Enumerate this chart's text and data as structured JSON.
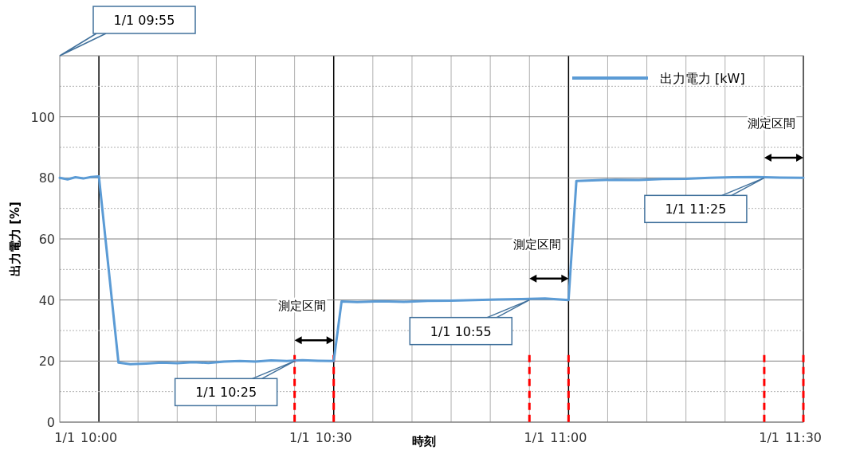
{
  "chart_data": {
    "type": "line",
    "xlabel": "時刻",
    "ylabel": "出力電力 [%]",
    "xlim": [
      9.9167,
      11.5
    ],
    "ylim": [
      0,
      120
    ],
    "xticks": [
      {
        "value": 10,
        "label": "10:00"
      },
      {
        "value": 10.0833,
        "label": null
      },
      {
        "value": 10.1667,
        "label": null
      },
      {
        "value": 10.25,
        "label": null
      },
      {
        "value": 10.3333,
        "label": null
      },
      {
        "value": 10.4167,
        "label": null
      },
      {
        "value": 10.5,
        "label": "10:30"
      },
      {
        "value": 10.5833,
        "label": null
      },
      {
        "value": 10.6667,
        "label": null
      },
      {
        "value": 10.75,
        "label": null
      },
      {
        "value": 10.8333,
        "label": null
      },
      {
        "value": 10.9167,
        "label": null
      },
      {
        "value": 11,
        "label": "11:00"
      },
      {
        "value": 11.0833,
        "label": null
      },
      {
        "value": 11.1667,
        "label": null
      },
      {
        "value": 11.25,
        "label": null
      },
      {
        "value": 11.3333,
        "label": null
      },
      {
        "value": 11.4167,
        "label": null
      },
      {
        "value": 11.5,
        "label": "11:30"
      }
    ],
    "yticks": [
      0,
      {
        "value": 10,
        "label": null
      },
      20,
      {
        "value": 30,
        "label": null
      },
      40,
      {
        "value": 50,
        "label": null
      },
      60,
      {
        "value": 70,
        "label": null
      },
      80,
      {
        "value": 90,
        "label": null
      },
      100,
      {
        "value": 110,
        "label": null
      }
    ],
    "grid": true,
    "legend": "top right",
    "series": [
      {
        "name": "出力電力 [kW]",
        "color": "#5b9bd5",
        "x": [
          9.9167,
          9.9333,
          9.95,
          9.9667,
          9.9833,
          10,
          10.0417,
          10.0667,
          10.1,
          10.1333,
          10.1667,
          10.2,
          10.2333,
          10.2667,
          10.3,
          10.3333,
          10.3667,
          10.4,
          10.4333,
          10.4667,
          10.5,
          10.5167,
          10.55,
          10.6,
          10.65,
          10.7,
          10.75,
          10.8,
          10.85,
          10.9,
          10.95,
          11,
          11.0167,
          11.05,
          11.1,
          11.15,
          11.2,
          11.25,
          11.3,
          11.35,
          11.4,
          11.45,
          11.5
        ],
        "values": [
          80,
          79.5,
          80.2,
          79.8,
          80.3,
          80.5,
          19.5,
          19,
          19.2,
          19.5,
          19.3,
          19.6,
          19.4,
          19.8,
          20,
          19.8,
          20.2,
          20,
          20.3,
          20.1,
          20,
          39.5,
          39.3,
          39.6,
          39.4,
          39.7,
          39.8,
          40,
          40.2,
          40.3,
          40.5,
          40,
          79,
          79.2,
          79.4,
          79.3,
          79.6,
          79.7,
          80,
          80.2,
          80.3,
          80.1,
          80
        ]
      }
    ],
    "ref_lines": [
      {
        "axis": "x",
        "value": 10.4167,
        "color": "#ff0000",
        "line_style": "dashed"
      },
      {
        "axis": "x",
        "value": 10.5,
        "color": "#ff0000",
        "line_style": "dashed"
      },
      {
        "axis": "x",
        "value": 10.9167,
        "color": "#ff0000",
        "line_style": "dashed"
      },
      {
        "axis": "x",
        "value": 11,
        "color": "#ff0000",
        "line_style": "dashed"
      },
      {
        "axis": "x",
        "value": 11.4167,
        "color": "#ff0000",
        "line_style": "dashed"
      },
      {
        "axis": "x",
        "value": 11.5,
        "color": "#ff0000",
        "line_style": "dashed"
      }
    ],
    "annotations": [
      "1/1 09:55",
      "1/1",
      "1/1",
      "1/1",
      "1/1",
      "測定区間",
      "測定区間",
      "測定区間",
      {
        "text": "1/1 10:25",
        "x": 10.4167,
        "y": 20
      },
      {
        "text": "1/1 10:55",
        "x": 10.9167,
        "y": 40
      },
      {
        "text": "1/1 11:25",
        "x": 11.4167,
        "y": 80
      }
    ]
  }
}
